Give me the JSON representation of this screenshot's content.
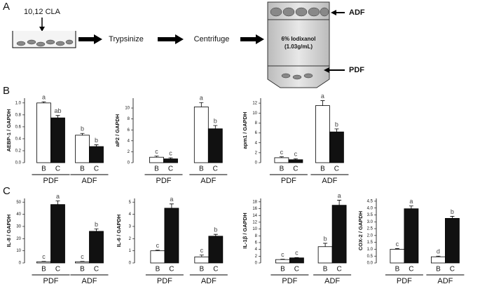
{
  "panel_labels": [
    "A",
    "B",
    "C"
  ],
  "diagram": {
    "treatment": "10,12 CLA",
    "step1": "Trypsinize",
    "step2": "Centrifuge",
    "medium": "6% Iodixanol",
    "density": "(1.03g/mL)",
    "top_fraction": "ADF",
    "bottom_fraction": "PDF"
  },
  "chart_data": [
    {
      "type": "bar",
      "y_label": "AEBP-1 / GAPDH",
      "categories": [
        "PDF",
        "ADF"
      ],
      "ylim": [
        0,
        1.08
      ],
      "yticks": [
        {
          "value": 0,
          "label": "0.0"
        },
        0.2,
        0.4,
        0.6,
        0.8,
        {
          "value": 1,
          "label": "1.0"
        }
      ],
      "series": [
        {
          "name": "B",
          "color": "#ffffff",
          "values": [
            1.0,
            0.46
          ],
          "errors": [
            0.02,
            0.03
          ],
          "letters": [
            "a",
            "b"
          ]
        },
        {
          "name": "C",
          "color": "#111111",
          "values": [
            0.75,
            0.27
          ],
          "errors": [
            0.04,
            0.03
          ],
          "letters": [
            "ab",
            "b"
          ]
        }
      ]
    },
    {
      "type": "bar",
      "y_label": "aP2 / GAPDH",
      "categories": [
        "PDF",
        "ADF"
      ],
      "ylim": [
        0,
        11.8
      ],
      "yticks": [
        0,
        2,
        4,
        6,
        8,
        10
      ],
      "series": [
        {
          "name": "B",
          "color": "#ffffff",
          "values": [
            1.0,
            10.2
          ],
          "errors": [
            0.2,
            0.8
          ],
          "letters": [
            "c",
            "a"
          ]
        },
        {
          "name": "C",
          "color": "#111111",
          "values": [
            0.7,
            6.2
          ],
          "errors": [
            0.2,
            0.6
          ],
          "letters": [
            "c",
            "b"
          ]
        }
      ]
    },
    {
      "type": "bar",
      "y_label": "apm1 / GAPDH",
      "categories": [
        "PDF",
        "ADF"
      ],
      "ylim": [
        0,
        13
      ],
      "yticks": [
        0,
        2,
        4,
        6,
        8,
        10,
        12
      ],
      "series": [
        {
          "name": "B",
          "color": "#ffffff",
          "values": [
            1.0,
            11.5
          ],
          "errors": [
            0.2,
            1.0
          ],
          "letters": [
            "c",
            "a"
          ]
        },
        {
          "name": "C",
          "color": "#111111",
          "values": [
            0.6,
            6.2
          ],
          "errors": [
            0.2,
            0.6
          ],
          "letters": [
            "c",
            "b"
          ]
        }
      ]
    },
    {
      "type": "bar",
      "y_label": "IL-8 / GAPDH",
      "categories": [
        "PDF",
        "ADF"
      ],
      "ylim": [
        0,
        53
      ],
      "yticks": [
        0,
        10,
        20,
        30,
        40,
        50
      ],
      "series": [
        {
          "name": "B",
          "color": "#ffffff",
          "values": [
            1,
            1
          ],
          "errors": [
            0.3,
            0.3
          ],
          "letters": [
            "c",
            "c"
          ]
        },
        {
          "name": "C",
          "color": "#111111",
          "values": [
            48,
            26
          ],
          "errors": [
            3,
            2
          ],
          "letters": [
            "a",
            "b"
          ]
        }
      ]
    },
    {
      "type": "bar",
      "y_label": "IL-6 / GAPDH",
      "categories": [
        "PDF",
        "ADF"
      ],
      "ylim": [
        0,
        5.3
      ],
      "yticks": [
        0,
        1,
        2,
        3,
        4,
        5
      ],
      "series": [
        {
          "name": "B",
          "color": "#ffffff",
          "values": [
            1.0,
            0.5
          ],
          "errors": [
            0.05,
            0.15
          ],
          "letters": [
            "c",
            "c"
          ]
        },
        {
          "name": "C",
          "color": "#111111",
          "values": [
            4.5,
            2.2
          ],
          "errors": [
            0.35,
            0.15
          ],
          "letters": [
            "a",
            "b"
          ]
        }
      ]
    },
    {
      "type": "bar",
      "y_label": "IL-1β / GAPDH",
      "categories": [
        "PDF",
        "ADF"
      ],
      "ylim": [
        0,
        19
      ],
      "yticks": [
        0,
        2,
        4,
        6,
        8,
        10,
        12,
        14,
        16,
        18
      ],
      "series": [
        {
          "name": "B",
          "color": "#ffffff",
          "values": [
            1.0,
            4.8
          ],
          "errors": [
            0.1,
            1.0
          ],
          "letters": [
            "c",
            "b"
          ]
        },
        {
          "name": "C",
          "color": "#111111",
          "values": [
            1.5,
            17
          ],
          "errors": [
            0.1,
            1.5
          ],
          "letters": [
            "c",
            "a"
          ]
        }
      ]
    },
    {
      "type": "bar",
      "y_label": "COX-2 / GAPDH",
      "categories": [
        "PDF",
        "ADF"
      ],
      "ylim": [
        0,
        4.7
      ],
      "yticks": [
        {
          "value": 0,
          "label": "0.0"
        },
        0.5,
        {
          "value": 1,
          "label": "1.0"
        },
        1.5,
        {
          "value": 2,
          "label": "2.0"
        },
        2.5,
        {
          "value": 3,
          "label": "3.0"
        },
        3.5,
        {
          "value": 4,
          "label": "4.0"
        },
        4.5
      ],
      "series": [
        {
          "name": "B",
          "color": "#ffffff",
          "values": [
            1.0,
            0.45
          ],
          "errors": [
            0.05,
            0.05
          ],
          "letters": [
            "c",
            "d"
          ]
        },
        {
          "name": "C",
          "color": "#111111",
          "values": [
            3.95,
            3.25
          ],
          "errors": [
            0.2,
            0.15
          ],
          "letters": [
            "a",
            "b"
          ]
        }
      ]
    }
  ]
}
